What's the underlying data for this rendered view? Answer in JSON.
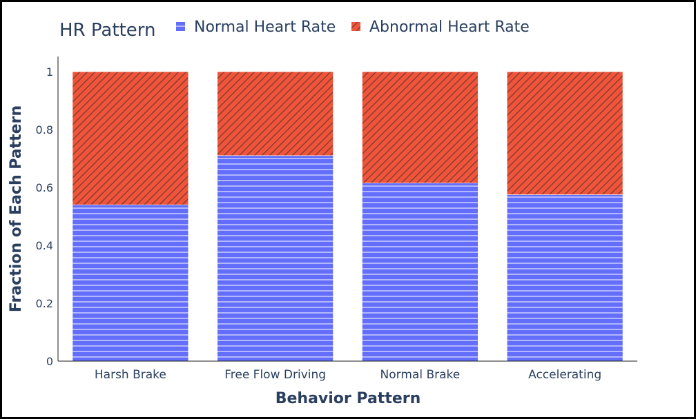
{
  "chart_data": {
    "type": "bar",
    "stacked": true,
    "xlabel": "Behavior Pattern",
    "ylabel": "Fraction of Each Pattern",
    "ylim": [
      0,
      1
    ],
    "yticks": [
      0,
      0.2,
      0.4,
      0.6,
      0.8,
      1
    ],
    "ytick_labels": [
      "0",
      "0.2",
      "0.4",
      "0.6",
      "0.8",
      "1"
    ],
    "categories": [
      "Harsh Brake",
      "Free Flow Driving",
      "Normal Brake",
      "Accelerating"
    ],
    "legend": {
      "title": "HR Pattern",
      "placement": "top"
    },
    "series": [
      {
        "name": "Normal Heart Rate",
        "color": "#636efa",
        "pattern": "horizontal-lines",
        "values": [
          0.54,
          0.71,
          0.615,
          0.575
        ]
      },
      {
        "name": "Abnormal Heart Rate",
        "color": "#ef553b",
        "pattern": "diagonal-lines",
        "values": [
          0.46,
          0.29,
          0.385,
          0.425
        ]
      }
    ]
  }
}
